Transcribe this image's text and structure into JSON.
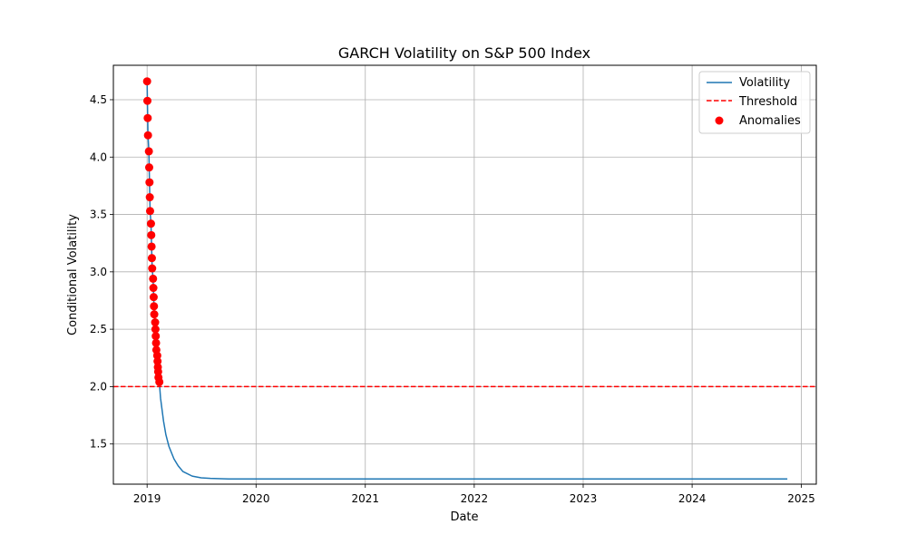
{
  "chart_data": {
    "type": "line",
    "title": "GARCH Volatility on S&P 500 Index",
    "xlabel": "Date",
    "ylabel": "Conditional Volatility",
    "x_ticks": [
      "2019",
      "2020",
      "2021",
      "2022",
      "2023",
      "2024",
      "2025"
    ],
    "y_ticks": [
      "1.5",
      "2.0",
      "2.5",
      "3.0",
      "3.5",
      "4.0",
      "4.5"
    ],
    "xlim": [
      "2018-09-10",
      "2025-02-20"
    ],
    "ylim": [
      1.15,
      4.8
    ],
    "grid": true,
    "legend_position": "top-right",
    "series": [
      {
        "name": "Volatility",
        "kind": "line",
        "color": "#1f77b4",
        "points": [
          [
            "2019-01-01",
            4.66
          ],
          [
            "2019-01-02",
            4.49
          ],
          [
            "2019-01-03",
            4.34
          ],
          [
            "2019-01-04",
            4.19
          ],
          [
            "2019-01-07",
            4.05
          ],
          [
            "2019-01-08",
            3.91
          ],
          [
            "2019-01-09",
            3.78
          ],
          [
            "2019-01-10",
            3.65
          ],
          [
            "2019-01-11",
            3.53
          ],
          [
            "2019-01-14",
            3.42
          ],
          [
            "2019-01-15",
            3.32
          ],
          [
            "2019-01-16",
            3.22
          ],
          [
            "2019-01-17",
            3.12
          ],
          [
            "2019-01-18",
            3.03
          ],
          [
            "2019-01-21",
            2.94
          ],
          [
            "2019-01-22",
            2.86
          ],
          [
            "2019-01-23",
            2.78
          ],
          [
            "2019-01-24",
            2.7
          ],
          [
            "2019-01-25",
            2.63
          ],
          [
            "2019-01-28",
            2.56
          ],
          [
            "2019-01-29",
            2.5
          ],
          [
            "2019-01-30",
            2.44
          ],
          [
            "2019-01-31",
            2.38
          ],
          [
            "2019-02-01",
            2.32
          ],
          [
            "2019-02-04",
            2.27
          ],
          [
            "2019-02-05",
            2.22
          ],
          [
            "2019-02-06",
            2.17
          ],
          [
            "2019-02-07",
            2.13
          ],
          [
            "2019-02-08",
            2.08
          ],
          [
            "2019-02-11",
            2.04
          ],
          [
            "2019-02-15",
            1.9
          ],
          [
            "2019-02-25",
            1.7
          ],
          [
            "2019-03-05",
            1.58
          ],
          [
            "2019-03-15",
            1.48
          ],
          [
            "2019-04-01",
            1.37
          ],
          [
            "2019-04-15",
            1.31
          ],
          [
            "2019-05-01",
            1.26
          ],
          [
            "2019-06-01",
            1.22
          ],
          [
            "2019-07-01",
            1.205
          ],
          [
            "2019-08-01",
            1.2
          ],
          [
            "2019-10-01",
            1.195
          ],
          [
            "2020-06-01",
            1.195
          ],
          [
            "2022-01-01",
            1.195
          ],
          [
            "2024-11-15",
            1.195
          ]
        ]
      },
      {
        "name": "Threshold",
        "kind": "hline",
        "color": "#ff0000",
        "value": 2.0
      },
      {
        "name": "Anomalies",
        "kind": "scatter",
        "color": "#ff0000",
        "points": [
          [
            "2019-01-01",
            4.66
          ],
          [
            "2019-01-02",
            4.49
          ],
          [
            "2019-01-03",
            4.34
          ],
          [
            "2019-01-04",
            4.19
          ],
          [
            "2019-01-07",
            4.05
          ],
          [
            "2019-01-08",
            3.91
          ],
          [
            "2019-01-09",
            3.78
          ],
          [
            "2019-01-10",
            3.65
          ],
          [
            "2019-01-11",
            3.53
          ],
          [
            "2019-01-14",
            3.42
          ],
          [
            "2019-01-15",
            3.32
          ],
          [
            "2019-01-16",
            3.22
          ],
          [
            "2019-01-17",
            3.12
          ],
          [
            "2019-01-18",
            3.03
          ],
          [
            "2019-01-21",
            2.94
          ],
          [
            "2019-01-22",
            2.86
          ],
          [
            "2019-01-23",
            2.78
          ],
          [
            "2019-01-24",
            2.7
          ],
          [
            "2019-01-25",
            2.63
          ],
          [
            "2019-01-28",
            2.56
          ],
          [
            "2019-01-29",
            2.5
          ],
          [
            "2019-01-30",
            2.44
          ],
          [
            "2019-01-31",
            2.38
          ],
          [
            "2019-02-01",
            2.32
          ],
          [
            "2019-02-04",
            2.27
          ],
          [
            "2019-02-05",
            2.22
          ],
          [
            "2019-02-06",
            2.17
          ],
          [
            "2019-02-07",
            2.13
          ],
          [
            "2019-02-08",
            2.08
          ],
          [
            "2019-02-11",
            2.04
          ]
        ]
      }
    ]
  }
}
